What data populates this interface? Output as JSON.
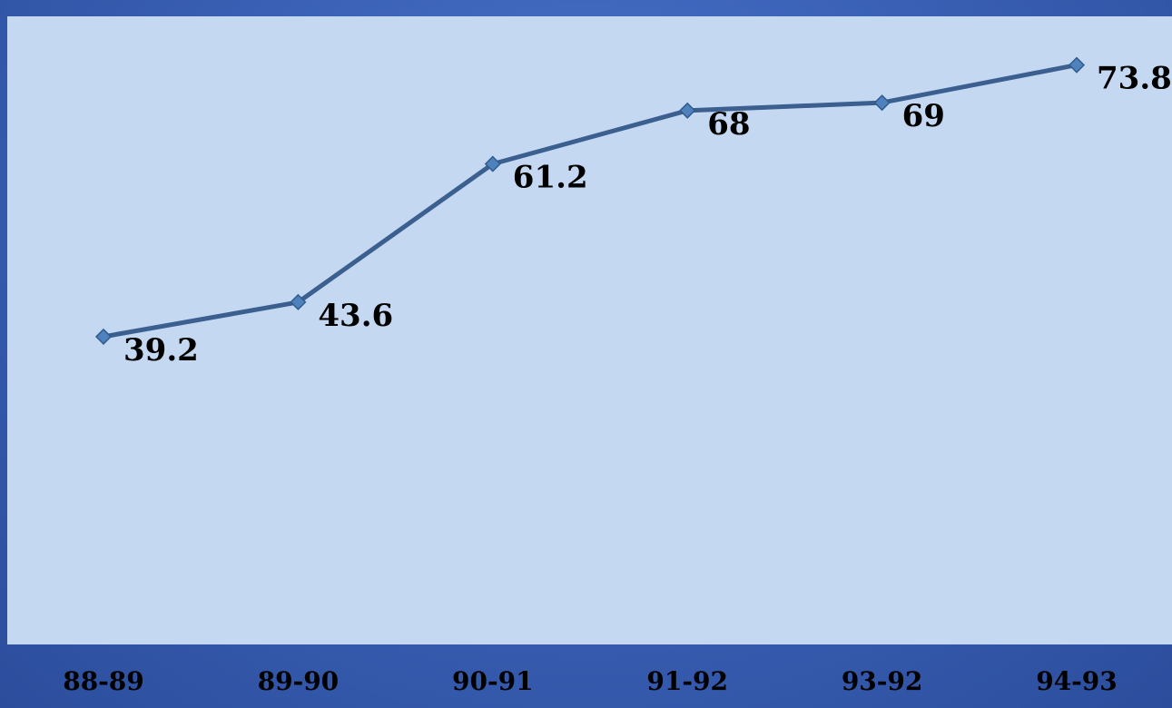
{
  "chart_data": {
    "type": "line",
    "categories": [
      "88-89",
      "89-90",
      "90-91",
      "91-92",
      "93-92",
      "94-93"
    ],
    "series": [
      {
        "values": [
          39.2,
          43.6,
          61.2,
          68,
          69,
          73.8
        ]
      }
    ],
    "data_labels": [
      "39.2",
      "43.6",
      "61.2",
      "68",
      "69",
      "73.8"
    ],
    "ylim": [
      0,
      80
    ],
    "grid": false,
    "legend": "none",
    "colors": {
      "background": "#3a61b6",
      "plot_area": "#c5d8f1",
      "line": "#3b5f8f",
      "marker": "#4f81bd",
      "text": "#000000"
    }
  }
}
